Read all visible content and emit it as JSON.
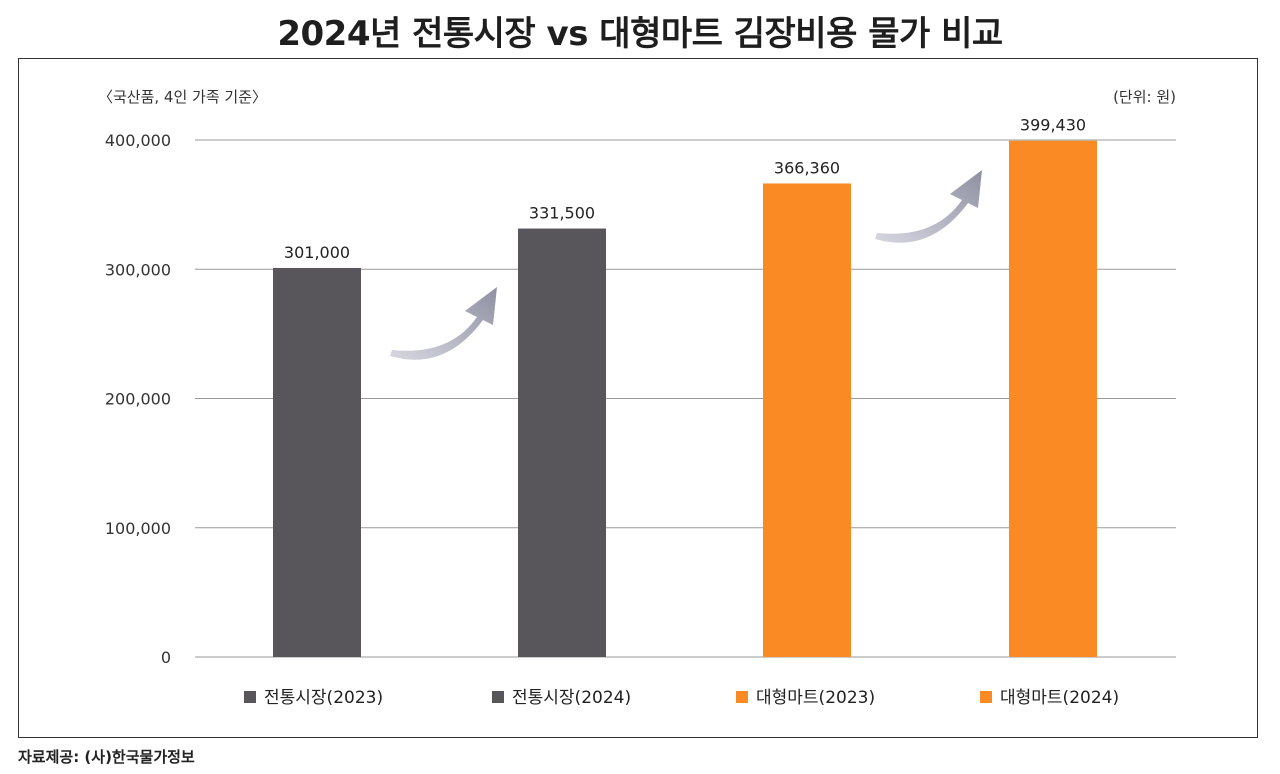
{
  "title": "2024년 전통시장 vs 대형마트 김장비용 물가 비교",
  "note_left": "〈국산품, 4인 가족 기준〉",
  "note_right": "(단위: 원)",
  "source": "자료제공: (사)한국물가정보",
  "colors": {
    "traditional": "#58565a",
    "mart": "#f98a24",
    "grid": "#9a9a9a",
    "arrow": "#9c9eae"
  },
  "chart_data": {
    "type": "bar",
    "title": "2024년 전통시장 vs 대형마트 김장비용 물가 비교",
    "xlabel": "",
    "ylabel": "",
    "ylim": [
      0,
      400000
    ],
    "yticks": [
      0,
      100000,
      200000,
      300000,
      400000
    ],
    "ytick_labels": [
      "0",
      "100,000",
      "200,000",
      "300,000",
      "400,000"
    ],
    "grid": true,
    "legend_position": "bottom",
    "categories": [
      "전통시장(2023)",
      "전통시장(2024)",
      "대형마트(2023)",
      "대형마트(2024)"
    ],
    "values": [
      301000,
      331500,
      366360,
      399430
    ],
    "value_labels": [
      "301,000",
      "331,500",
      "366,360",
      "399,430"
    ],
    "bar_colors": [
      "#58565a",
      "#58565a",
      "#f98a24",
      "#f98a24"
    ]
  }
}
